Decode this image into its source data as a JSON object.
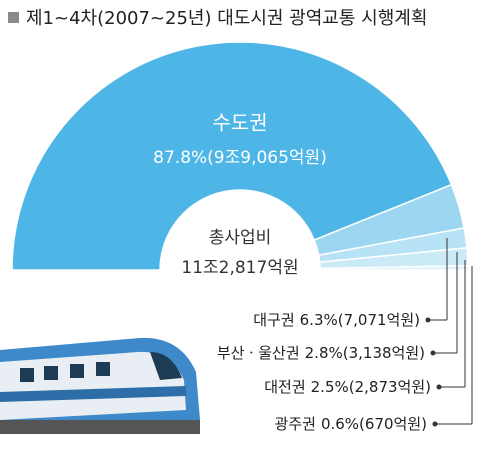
{
  "chart_data": {
    "type": "pie",
    "title": "제1~4차(2007~25년) 대도시권 광역교통 시행계획",
    "center_label": "총사업비",
    "center_value": "11조2,817억원",
    "categories": [
      "수도권",
      "대구권",
      "부산ㆍ울산권",
      "대전권",
      "광주권"
    ],
    "values": [
      87.8,
      6.3,
      2.8,
      2.5,
      0.6
    ],
    "value_labels": [
      "87.8%(9조9,065억원)",
      "6.3%(7,071억원)",
      "2.8%(3,138억원)",
      "2.5%(2,873억원)",
      "0.6%(670억원)"
    ],
    "colors": [
      "#4db6e6",
      "#9dd6f1",
      "#b8e2f5",
      "#cbeaf8",
      "#ddf2fb"
    ]
  }
}
